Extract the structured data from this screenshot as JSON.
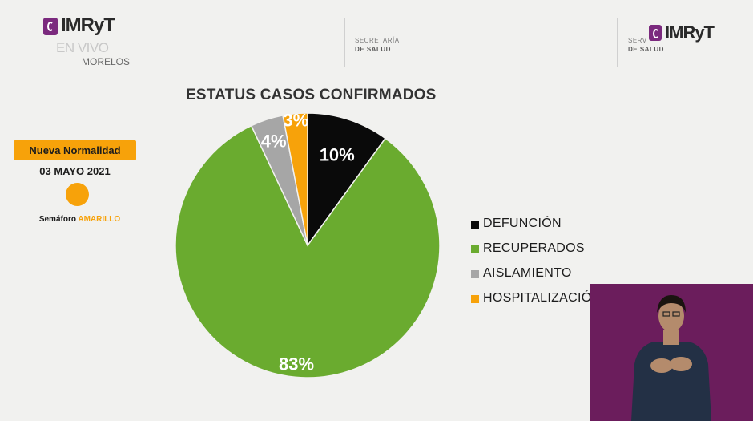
{
  "header": {
    "logo_left": "IMRyT",
    "logo_left_sub": "EN VIVO",
    "logo_left_place": "MORELOS",
    "secretaria_line1": "SECRETARÍA",
    "secretaria_line2": "DE SALUD",
    "servicios_line1": "SERV",
    "servicios_line2": "DE SALUD",
    "logo_right": "IMRyT"
  },
  "sidebar": {
    "nueva_normalidad": "Nueva Normalidad",
    "date": "03 MAYO 2021",
    "semaforo_label": "Semáforo",
    "semaforo_value": "AMARILLO"
  },
  "chart_data": {
    "type": "pie",
    "title": "ESTATUS CASOS CONFIRMADOS",
    "slices": [
      {
        "label": "DEFUNCIÓN",
        "value": 10,
        "display": "10%",
        "color": "#0a0a0a"
      },
      {
        "label": "RECUPERADOS",
        "value": 83,
        "display": "83%",
        "color": "#6aab2f"
      },
      {
        "label": "AISLAMIENTO",
        "value": 4,
        "display": "4%",
        "color": "#a6a6a6"
      },
      {
        "label": "HOSPITALIZACIÓ",
        "value": 3,
        "display": "3%",
        "color": "#f7a20a"
      }
    ],
    "legend_position": "right"
  }
}
